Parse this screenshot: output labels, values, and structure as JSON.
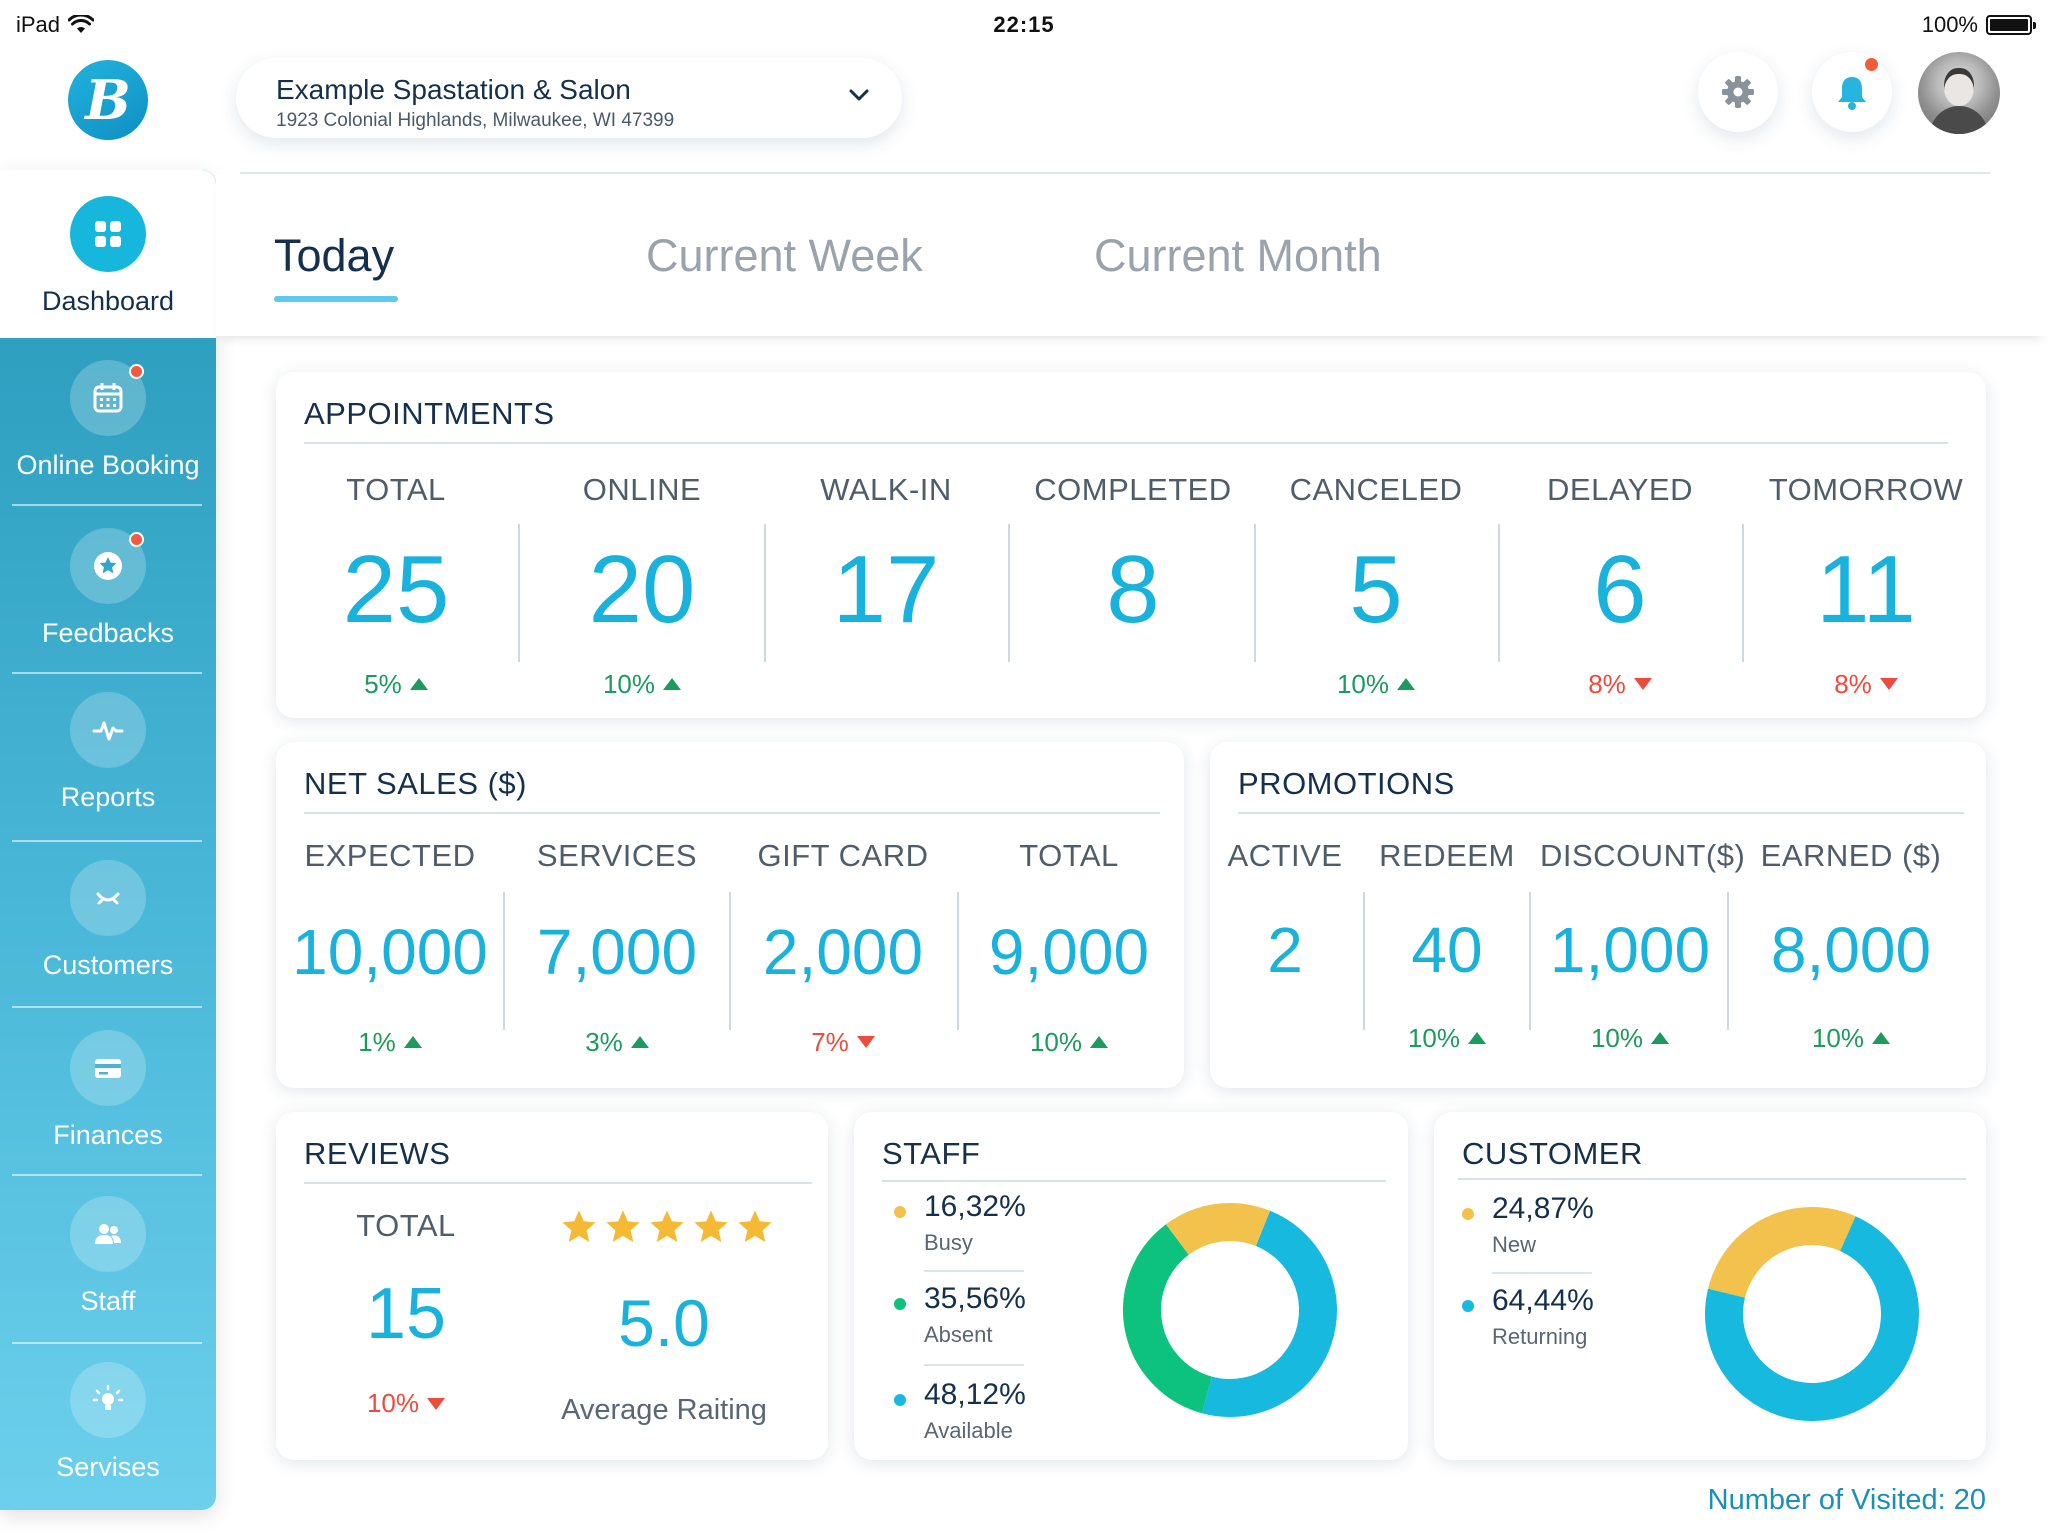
{
  "status_bar": {
    "device": "iPad",
    "time": "22:15",
    "battery": "100%"
  },
  "brand": {
    "logo_letter": "B"
  },
  "location": {
    "name": "Example Spastation & Salon",
    "address": "1923 Colonial Highlands, Milwaukee, WI 47399"
  },
  "tabs": [
    {
      "label": "Today",
      "active": true
    },
    {
      "label": "Current Week",
      "active": false
    },
    {
      "label": "Current Month",
      "active": false
    }
  ],
  "sidebar": {
    "items": [
      {
        "label": "Dashboard",
        "icon": "dashboard-grid-icon",
        "active": true
      },
      {
        "label": "Online Booking",
        "icon": "calendar-icon",
        "badge": true
      },
      {
        "label": "Feedbacks",
        "icon": "star-icon",
        "badge": true
      },
      {
        "label": "Reports",
        "icon": "pulse-icon"
      },
      {
        "label": "Customers",
        "icon": "smile-icon"
      },
      {
        "label": "Finances",
        "icon": "card-icon"
      },
      {
        "label": "Staff",
        "icon": "people-icon"
      },
      {
        "label": "Servises",
        "icon": "bulb-icon"
      }
    ]
  },
  "appointments": {
    "title": "APPOINTMENTS",
    "columns": [
      {
        "label": "TOTAL",
        "value": "25",
        "change": "5%",
        "trend": "up"
      },
      {
        "label": "ONLINE",
        "value": "20",
        "change": "10%",
        "trend": "up"
      },
      {
        "label": "WALK-IN",
        "value": "17",
        "change": "",
        "trend": ""
      },
      {
        "label": "COMPLETED",
        "value": "8",
        "change": "",
        "trend": ""
      },
      {
        "label": "CANCELED",
        "value": "5",
        "change": "10%",
        "trend": "up"
      },
      {
        "label": "DELAYED",
        "value": "6",
        "change": "8%",
        "trend": "down"
      },
      {
        "label": "TOMORROW",
        "value": "11",
        "change": "8%",
        "trend": "down"
      }
    ]
  },
  "net_sales": {
    "title": "NET SALES ($)",
    "columns": [
      {
        "label": "EXPECTED",
        "value": "10,000",
        "change": "1%",
        "trend": "up"
      },
      {
        "label": "SERVICES",
        "value": "7,000",
        "change": "3%",
        "trend": "up"
      },
      {
        "label": "GIFT CARD",
        "value": "2,000",
        "change": "7%",
        "trend": "down"
      },
      {
        "label": "TOTAL",
        "value": "9,000",
        "change": "10%",
        "trend": "up"
      }
    ]
  },
  "promotions": {
    "title": "PROMOTIONS",
    "columns": [
      {
        "label": "ACTIVE",
        "value": "2",
        "change": "",
        "trend": ""
      },
      {
        "label": "REDEEM",
        "value": "40",
        "change": "10%",
        "trend": "up"
      },
      {
        "label": "DISCOUNT($)",
        "value": "1,000",
        "change": "10%",
        "trend": "up"
      },
      {
        "label": "EARNED ($)",
        "value": "8,000",
        "change": "10%",
        "trend": "up"
      }
    ]
  },
  "reviews": {
    "title": "REVIEWS",
    "total_label": "TOTAL",
    "total_value": "15",
    "total_change": "10%",
    "total_trend": "down",
    "rating_stars": 5,
    "rating_value": "5.0",
    "rating_label": "Average Raiting"
  },
  "staff": {
    "title": "STAFF",
    "legend": [
      {
        "pct": "16,32%",
        "name": "Busy",
        "color": "#f2c24d",
        "value": 16.32
      },
      {
        "pct": "35,56%",
        "name": "Absent",
        "color": "#0cc27e",
        "value": 35.56
      },
      {
        "pct": "48,12%",
        "name": "Available",
        "color": "#17b9de",
        "value": 48.12
      }
    ]
  },
  "customer": {
    "title": "CUSTOMER",
    "legend": [
      {
        "pct": "24,87%",
        "name": "New",
        "color": "#f2c24d",
        "value": 24.87
      },
      {
        "pct": "64,44%",
        "name": "Returning",
        "color": "#17b9de",
        "value": 64.44
      }
    ]
  },
  "footer": {
    "visited": "Number of Visited: 20"
  },
  "colors": {
    "accent": "#19b2dc",
    "up": "#1d9a5d",
    "down": "#ee4b3c",
    "text": "#14304d"
  }
}
